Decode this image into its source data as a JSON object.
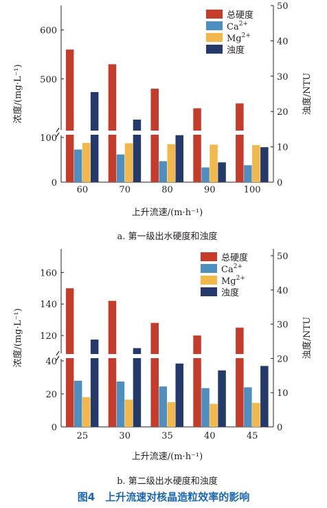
{
  "figure_caption": "图4　上升流速对核晶造粒效率的影响",
  "colors": {
    "总硬度": "#c63c2b",
    "Ca2+": "#4f8fc0",
    "Mg2+": "#f2b84b",
    "浊度": "#233a6a"
  },
  "chart_data": [
    {
      "type": "bar",
      "subcaption": "a. 第一级出水硬度和浊度",
      "xlabel": "上升流速/(m·h⁻¹)",
      "ylabel_left": "浓度/(mg·L⁻¹)",
      "ylabel_right": "浊度/NTU",
      "categories": [
        "60",
        "70",
        "80",
        "90",
        "100"
      ],
      "left_axis_broken": true,
      "left_lower_range": [
        0,
        100
      ],
      "left_upper_range": [
        400,
        650
      ],
      "left_ticks_lower": [
        "0",
        "100"
      ],
      "left_ticks_upper": [
        "500",
        "600"
      ],
      "right_range": [
        0,
        50
      ],
      "right_ticks": [
        "0",
        "10",
        "20",
        "30",
        "40",
        "50"
      ],
      "legend": [
        "总硬度",
        "Ca",
        "Mg",
        "浊度"
      ],
      "legend_sup": [
        "",
        "2+",
        "2+",
        ""
      ],
      "legend_position": "top-right",
      "series": [
        {
          "name": "总硬度",
          "axis": "left",
          "values": [
            560,
            530,
            480,
            440,
            450
          ]
        },
        {
          "name": "Ca2+",
          "axis": "left",
          "values": [
            73,
            62,
            47,
            33,
            38
          ]
        },
        {
          "name": "Mg2+",
          "axis": "left",
          "values": [
            88,
            87,
            85,
            84,
            83
          ]
        },
        {
          "name": "浊度",
          "axis": "right",
          "values": [
            25.5,
            17.7,
            13.3,
            5.6,
            9.9
          ]
        }
      ]
    },
    {
      "type": "bar",
      "subcaption": "b. 第二级出水硬度和浊度",
      "xlabel": "上升流速/(m·h⁻¹)",
      "ylabel_left": "浓度/(mg·L⁻¹)",
      "ylabel_right": "浊度/NTU",
      "categories": [
        "25",
        "30",
        "35",
        "40",
        "45"
      ],
      "left_axis_broken": true,
      "left_lower_range": [
        0,
        40
      ],
      "left_upper_range": [
        110,
        175
      ],
      "left_ticks_lower": [
        "0",
        "20",
        "40"
      ],
      "left_ticks_upper": [
        "120",
        "140",
        "160"
      ],
      "right_range": [
        0,
        52
      ],
      "right_ticks": [
        "0",
        "10",
        "20",
        "30",
        "40",
        "50"
      ],
      "legend": [
        "总硬度",
        "Ca",
        "Mg",
        "浊度"
      ],
      "legend_sup": [
        "",
        "2+",
        "2+",
        ""
      ],
      "legend_position": "top-right",
      "series": [
        {
          "name": "总硬度",
          "axis": "left",
          "values": [
            150,
            142,
            128,
            120,
            125
          ]
        },
        {
          "name": "Ca2+",
          "axis": "left",
          "values": [
            28,
            27.5,
            24.5,
            23.5,
            24
          ]
        },
        {
          "name": "Mg2+",
          "axis": "left",
          "values": [
            18,
            16.5,
            15,
            14,
            14.5
          ]
        },
        {
          "name": "浊度",
          "axis": "right",
          "values": [
            25.5,
            23,
            18.5,
            16.5,
            17.8
          ]
        }
      ]
    }
  ]
}
